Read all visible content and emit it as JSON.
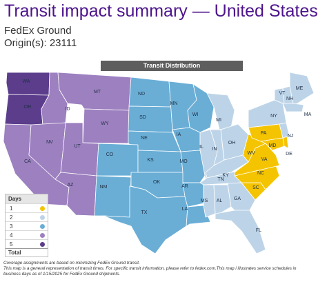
{
  "header": {
    "title": "Transit impact summary — United States",
    "carrier": "FedEx Ground",
    "origin": "Origin(s):  23111"
  },
  "banner": "Transit Distribution",
  "colors": {
    "day1": "#f5c400",
    "day2": "#bdd4e8",
    "day3": "#6aaed6",
    "day4": "#9d80c0",
    "day5": "#5b3d8c"
  },
  "states": [
    {
      "code": "WA",
      "day": 5
    },
    {
      "code": "OR",
      "day": 5
    },
    {
      "code": "ID",
      "day": 4
    },
    {
      "code": "MT",
      "day": 4
    },
    {
      "code": "WY",
      "day": 4
    },
    {
      "code": "CA",
      "day": 4
    },
    {
      "code": "NV",
      "day": 4
    },
    {
      "code": "UT",
      "day": 4
    },
    {
      "code": "AZ",
      "day": 4
    },
    {
      "code": "ND",
      "day": 3
    },
    {
      "code": "SD",
      "day": 3
    },
    {
      "code": "NE",
      "day": 3
    },
    {
      "code": "CO",
      "day": 3
    },
    {
      "code": "NM",
      "day": 3
    },
    {
      "code": "KS",
      "day": 3
    },
    {
      "code": "OK",
      "day": 3
    },
    {
      "code": "TX",
      "day": 3
    },
    {
      "code": "MN",
      "day": 3
    },
    {
      "code": "IA",
      "day": 3
    },
    {
      "code": "MO",
      "day": 3
    },
    {
      "code": "AR",
      "day": 3
    },
    {
      "code": "LA",
      "day": 3
    },
    {
      "code": "WI",
      "day": 3
    },
    {
      "code": "IL",
      "day": 2
    },
    {
      "code": "MI",
      "day": 2
    },
    {
      "code": "IN",
      "day": 2
    },
    {
      "code": "OH",
      "day": 2
    },
    {
      "code": "KY",
      "day": 2
    },
    {
      "code": "TN",
      "day": 2
    },
    {
      "code": "MS",
      "day": 2
    },
    {
      "code": "AL",
      "day": 2
    },
    {
      "code": "GA",
      "day": 2
    },
    {
      "code": "FL",
      "day": 2
    },
    {
      "code": "SC",
      "day": 1
    },
    {
      "code": "NC",
      "day": 1
    },
    {
      "code": "VA",
      "day": 1
    },
    {
      "code": "WV",
      "day": 1
    },
    {
      "code": "PA",
      "day": 1
    },
    {
      "code": "MD",
      "day": 1
    },
    {
      "code": "DE",
      "day": 1
    },
    {
      "code": "NJ",
      "day": 2
    },
    {
      "code": "NY",
      "day": 2
    },
    {
      "code": "VT",
      "day": 2
    },
    {
      "code": "NH",
      "day": 2
    },
    {
      "code": "ME",
      "day": 2
    },
    {
      "code": "MA",
      "day": 2
    }
  ],
  "legend": {
    "title": "Days",
    "rows": [
      {
        "label": "1",
        "color": "#f5c400"
      },
      {
        "label": "2",
        "color": "#bdd4e8"
      },
      {
        "label": "3",
        "color": "#6aaed6"
      },
      {
        "label": "4",
        "color": "#9d80c0"
      },
      {
        "label": "5",
        "color": "#5b3d8c"
      }
    ],
    "total": "Total"
  },
  "footnote": {
    "line1": "Coverage assignments are based on minimizing FedEx Ground transit.",
    "line2": "This map is a general representation of transit times. For specific transit information, please refer to fedex.com.This map i  illustrates service schedules in",
    "line3": "business days as of 1/15/2025 for FedEx Ground shipments."
  }
}
